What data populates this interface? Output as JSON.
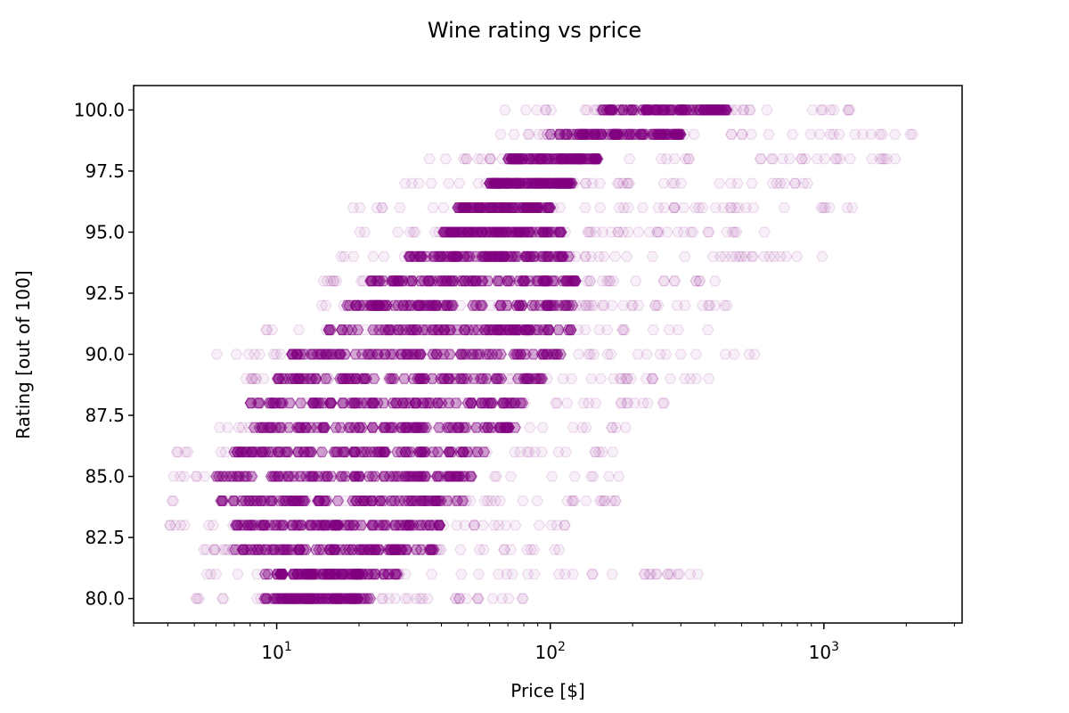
{
  "chart_data": {
    "type": "scatter",
    "title": "Wine rating vs price",
    "xlabel": "Price [$]",
    "ylabel": "Rating [out of 100]",
    "xscale": "log",
    "xlim": [
      3,
      3200
    ],
    "ylim": [
      79,
      101
    ],
    "marker": "hexagon",
    "color": "#800080",
    "yticks": [
      {
        "value": 80.0,
        "label": "80.0"
      },
      {
        "value": 82.5,
        "label": "82.5"
      },
      {
        "value": 85.0,
        "label": "85.0"
      },
      {
        "value": 87.5,
        "label": "87.5"
      },
      {
        "value": 90.0,
        "label": "90.0"
      },
      {
        "value": 92.5,
        "label": "92.5"
      },
      {
        "value": 95.0,
        "label": "95.0"
      },
      {
        "value": 97.5,
        "label": "97.5"
      },
      {
        "value": 100.0,
        "label": "100.0"
      }
    ],
    "xticks": [
      {
        "value": 10,
        "base": "10",
        "exp": "1"
      },
      {
        "value": 100,
        "base": "10",
        "exp": "2"
      },
      {
        "value": 1000,
        "base": "10",
        "exp": "3"
      }
    ],
    "grid": false,
    "series": [
      {
        "points_by_rating": [
          {
            "rating": 80,
            "price_min": 5,
            "price_max": 80,
            "core_min": 9,
            "core_max": 22
          },
          {
            "rating": 81,
            "price_min": 5,
            "price_max": 360,
            "core_min": 9,
            "core_max": 28
          },
          {
            "rating": 82,
            "price_min": 5,
            "price_max": 110,
            "core_min": 7,
            "core_max": 38
          },
          {
            "rating": 83,
            "price_min": 4,
            "price_max": 130,
            "core_min": 7,
            "core_max": 42
          },
          {
            "rating": 84,
            "price_min": 4,
            "price_max": 180,
            "core_min": 6,
            "core_max": 48
          },
          {
            "rating": 85,
            "price_min": 4,
            "price_max": 230,
            "core_min": 6,
            "core_max": 55
          },
          {
            "rating": 86,
            "price_min": 4,
            "price_max": 200,
            "core_min": 7,
            "core_max": 60
          },
          {
            "rating": 87,
            "price_min": 6,
            "price_max": 230,
            "core_min": 8,
            "core_max": 75
          },
          {
            "rating": 88,
            "price_min": 7,
            "price_max": 300,
            "core_min": 8,
            "core_max": 85
          },
          {
            "rating": 89,
            "price_min": 7,
            "price_max": 480,
            "core_min": 10,
            "core_max": 100
          },
          {
            "rating": 90,
            "price_min": 6,
            "price_max": 560,
            "core_min": 11,
            "core_max": 110
          },
          {
            "rating": 91,
            "price_min": 9,
            "price_max": 400,
            "core_min": 15,
            "core_max": 120
          },
          {
            "rating": 92,
            "price_min": 14,
            "price_max": 450,
            "core_min": 18,
            "core_max": 125
          },
          {
            "rating": 93,
            "price_min": 14,
            "price_max": 420,
            "core_min": 22,
            "core_max": 130
          },
          {
            "rating": 94,
            "price_min": 16,
            "price_max": 1100,
            "core_min": 30,
            "core_max": 120
          },
          {
            "rating": 95,
            "price_min": 20,
            "price_max": 700,
            "core_min": 40,
            "core_max": 110
          },
          {
            "rating": 96,
            "price_min": 19,
            "price_max": 1300,
            "core_min": 45,
            "core_max": 100
          },
          {
            "rating": 97,
            "price_min": 28,
            "price_max": 1000,
            "core_min": 60,
            "core_max": 120
          },
          {
            "rating": 98,
            "price_min": 35,
            "price_max": 1900,
            "core_min": 70,
            "core_max": 150
          },
          {
            "rating": 99,
            "price_min": 60,
            "price_max": 2300,
            "core_min": 100,
            "core_max": 300
          },
          {
            "rating": 100,
            "price_min": 65,
            "price_max": 1400,
            "core_min": 150,
            "core_max": 450
          }
        ]
      }
    ]
  }
}
